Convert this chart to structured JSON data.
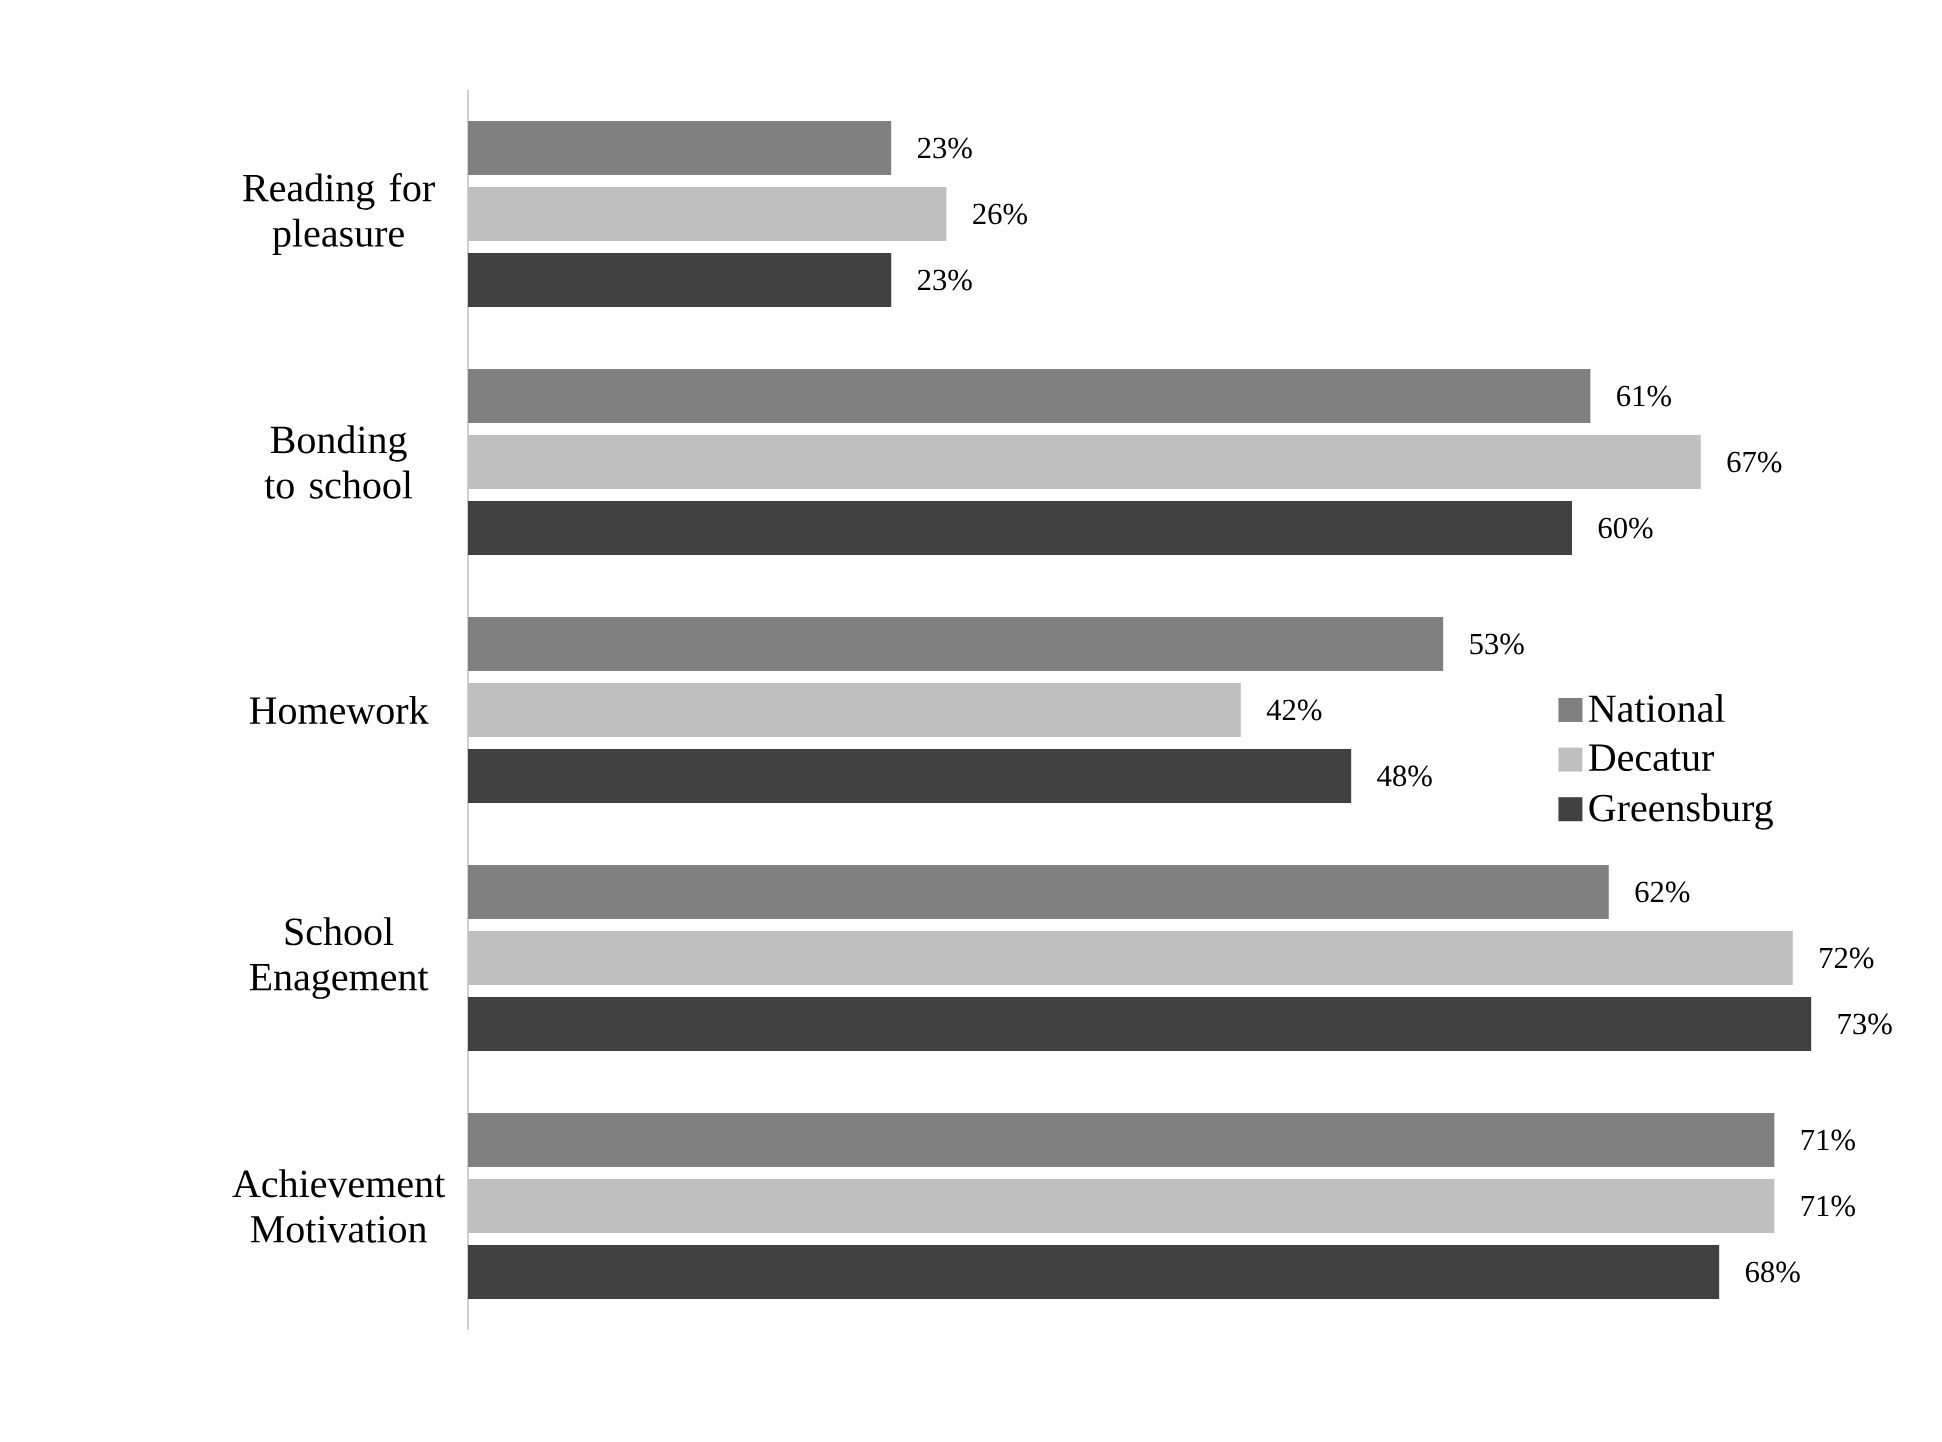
{
  "chart_data": {
    "type": "bar",
    "orientation": "horizontal",
    "categories": [
      "Reading for pleasure",
      "Bonding to school",
      "Homework",
      "School Enagement",
      "Achievement Motivation"
    ],
    "series": [
      {
        "name": "National",
        "color": "#808080",
        "values": [
          23,
          61,
          53,
          62,
          71
        ],
        "value_labels": [
          "23%",
          "61%",
          "53%",
          "62%",
          "71%"
        ]
      },
      {
        "name": "Decatur",
        "color": "#bfbfbf",
        "values": [
          26,
          67,
          42,
          72,
          71
        ],
        "value_labels": [
          "26%",
          "67%",
          "42%",
          "72%",
          "71%"
        ]
      },
      {
        "name": "Greensburg",
        "color": "#404040",
        "values": [
          23,
          60,
          48,
          73,
          68
        ],
        "value_labels": [
          "23%",
          "60%",
          "48%",
          "73%",
          "68%"
        ]
      }
    ],
    "legend": "right",
    "grid": false
  }
}
